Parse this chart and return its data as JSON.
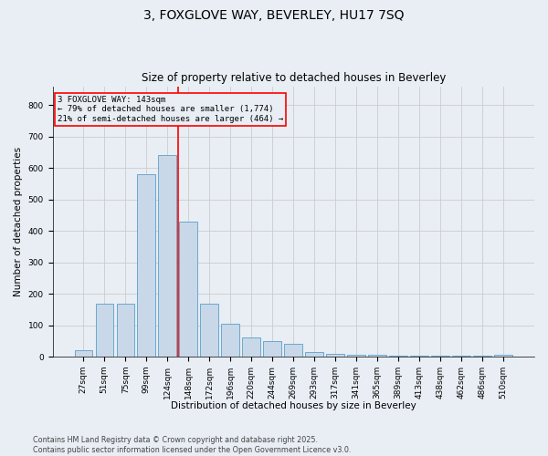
{
  "title1": "3, FOXGLOVE WAY, BEVERLEY, HU17 7SQ",
  "title2": "Size of property relative to detached houses in Beverley",
  "xlabel": "Distribution of detached houses by size in Beverley",
  "ylabel": "Number of detached properties",
  "categories": [
    "27sqm",
    "51sqm",
    "75sqm",
    "99sqm",
    "124sqm",
    "148sqm",
    "172sqm",
    "196sqm",
    "220sqm",
    "244sqm",
    "269sqm",
    "293sqm",
    "317sqm",
    "341sqm",
    "365sqm",
    "389sqm",
    "413sqm",
    "438sqm",
    "462sqm",
    "486sqm",
    "510sqm"
  ],
  "values": [
    20,
    170,
    170,
    580,
    640,
    430,
    170,
    105,
    60,
    50,
    40,
    15,
    10,
    5,
    5,
    3,
    3,
    3,
    2,
    2,
    5
  ],
  "bar_color": "#c8d8e8",
  "bar_edge_color": "#5a9fc8",
  "grid_color": "#cccccc",
  "bg_color": "#e8eef4",
  "vline_color": "red",
  "annotation_text": "3 FOXGLOVE WAY: 143sqm\n← 79% of detached houses are smaller (1,774)\n21% of semi-detached houses are larger (464) →",
  "footer1": "Contains HM Land Registry data © Crown copyright and database right 2025.",
  "footer2": "Contains public sector information licensed under the Open Government Licence v3.0.",
  "ylim": [
    0,
    860
  ],
  "yticks": [
    0,
    100,
    200,
    300,
    400,
    500,
    600,
    700,
    800
  ],
  "title1_fontsize": 10,
  "title2_fontsize": 8.5,
  "axis_label_fontsize": 7.5,
  "tick_fontsize": 6.5,
  "footer_fontsize": 5.8,
  "annotation_fontsize": 6.5
}
